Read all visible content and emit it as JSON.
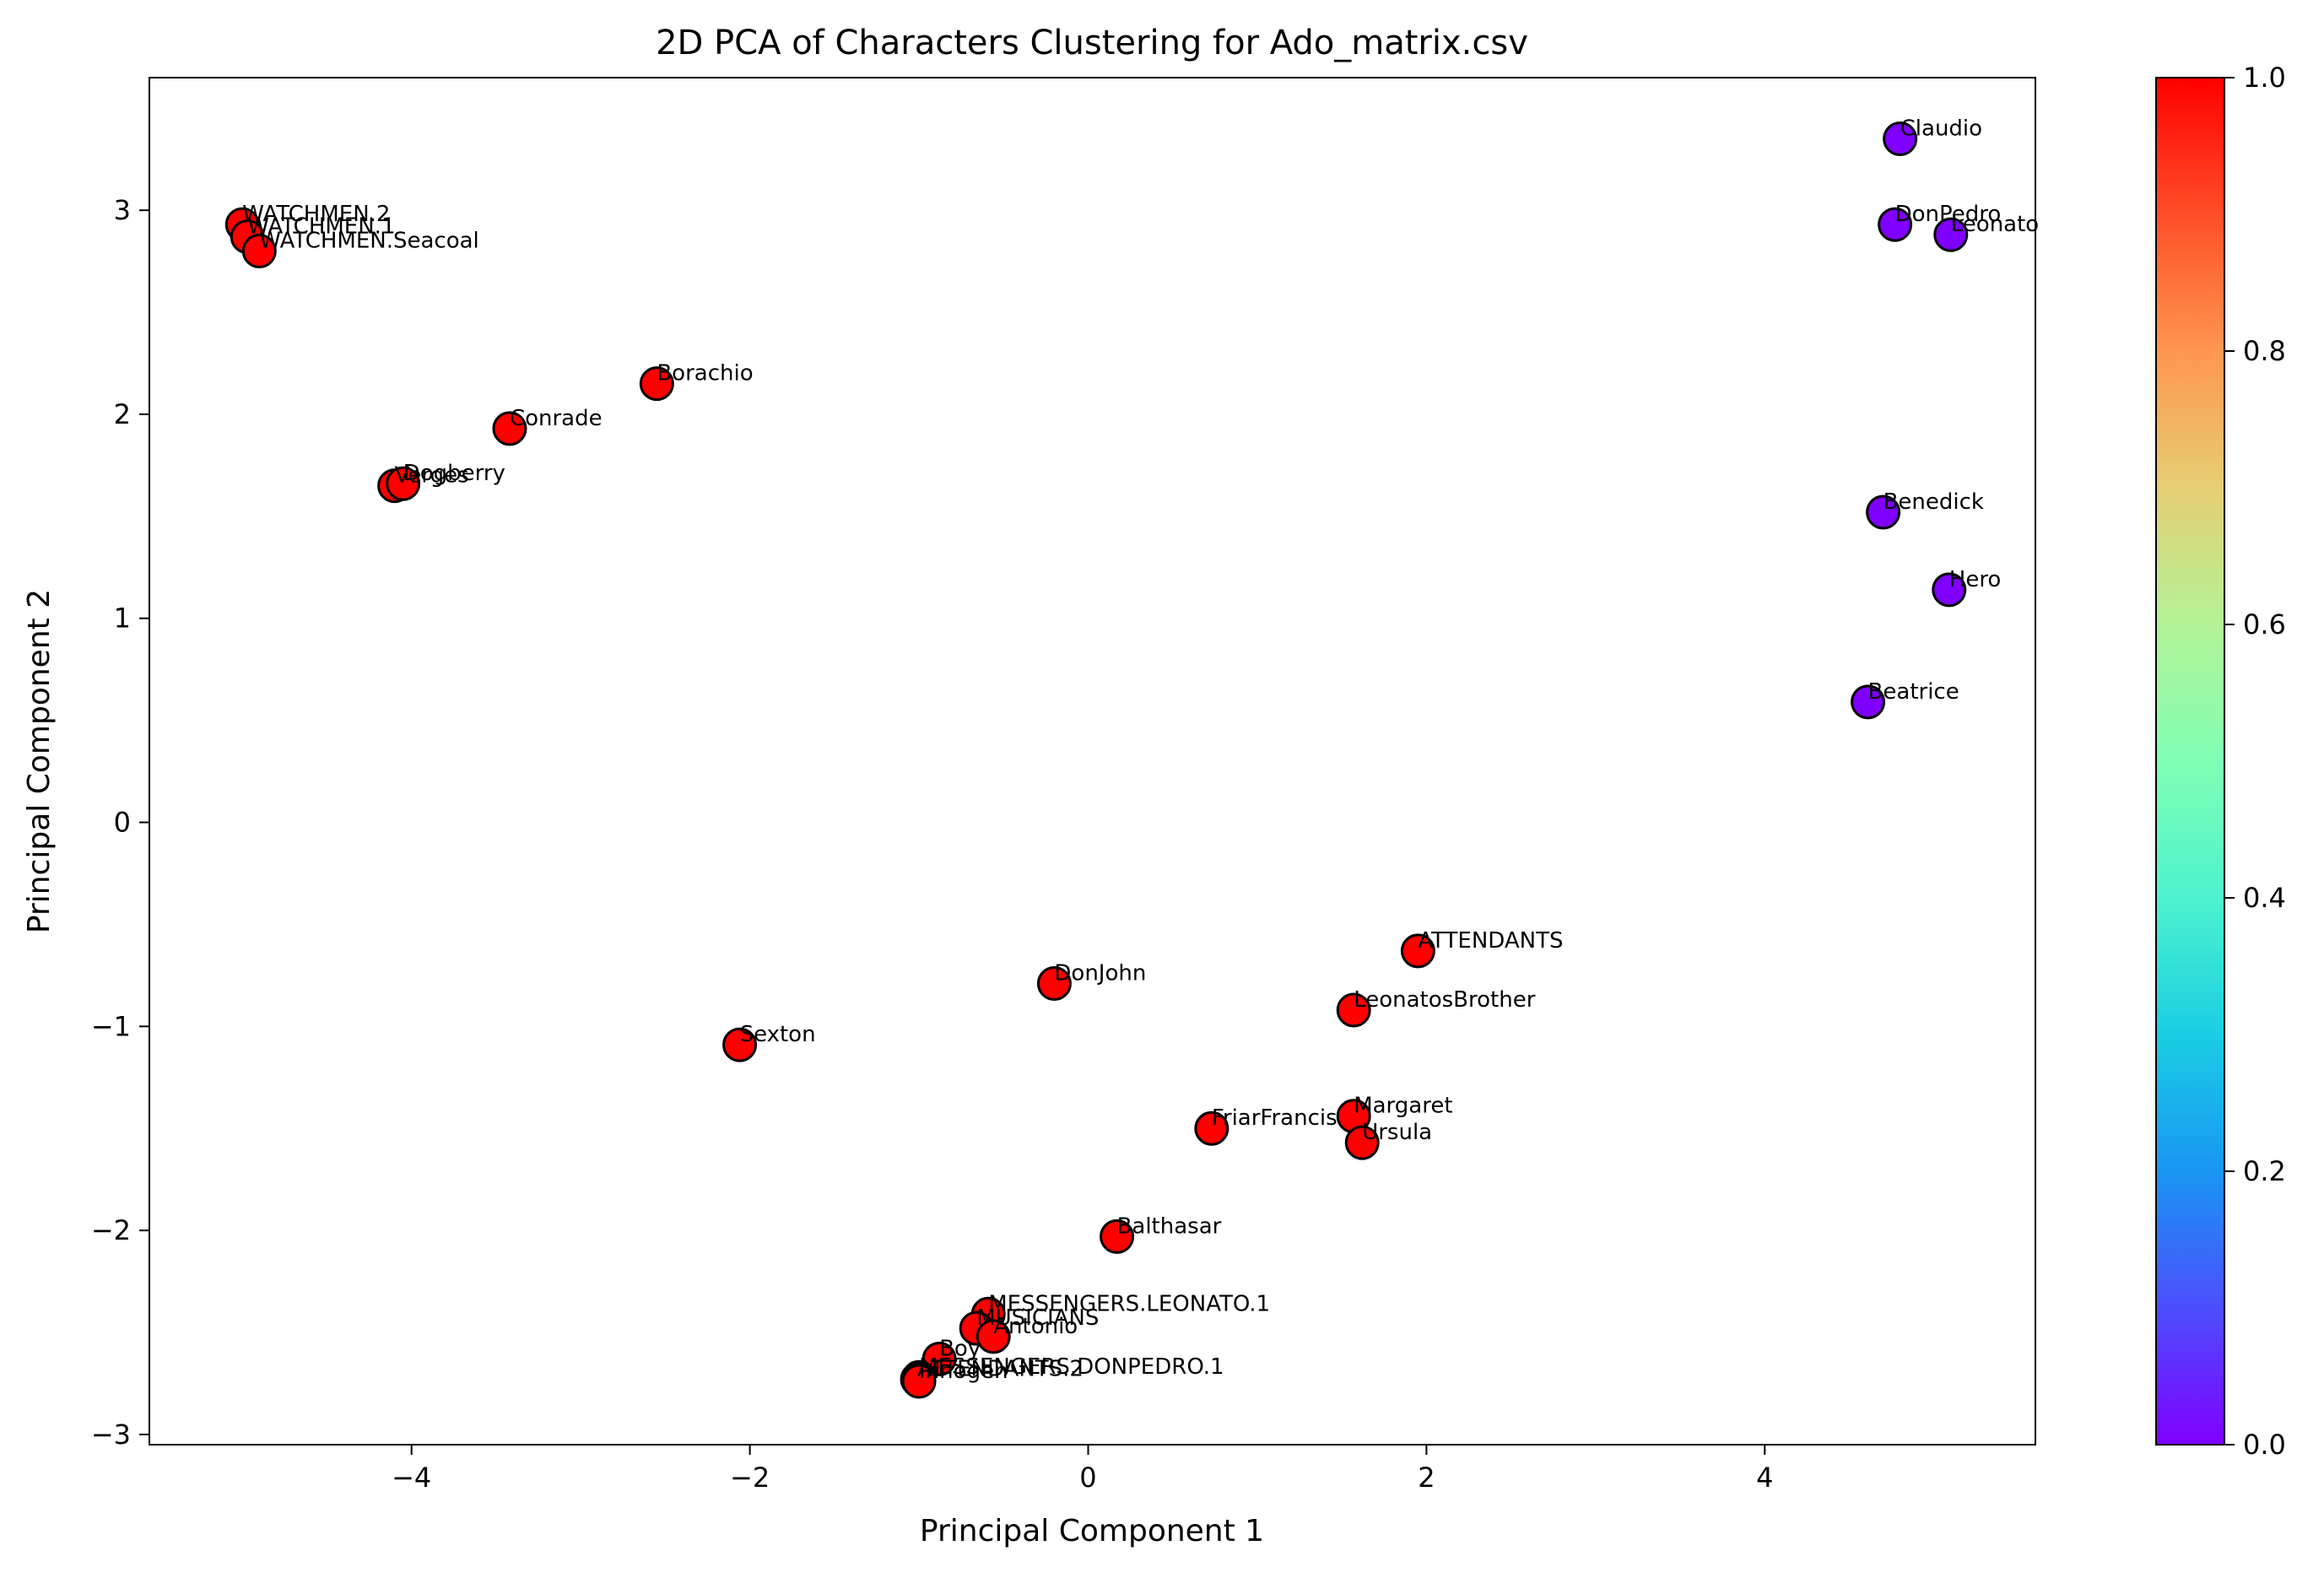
{
  "chart_data": {
    "type": "scatter",
    "title": "2D PCA of Characters Clustering for Ado_matrix.csv",
    "xlabel": "Principal Component 1",
    "ylabel": "Principal Component 2",
    "xlim": [
      -5.55,
      5.6
    ],
    "ylim": [
      -3.05,
      3.65
    ],
    "xticks": [
      -4,
      -2,
      0,
      2,
      4
    ],
    "yticks": [
      -3,
      -2,
      -1,
      0,
      1,
      2,
      3
    ],
    "xtick_labels": [
      "−4",
      "−2",
      "0",
      "2",
      "4"
    ],
    "ytick_labels": [
      "−3",
      "−2",
      "−1",
      "0",
      "1",
      "2",
      "3"
    ],
    "colorbar": {
      "range": [
        0.0,
        1.0
      ],
      "ticks": [
        0.0,
        0.2,
        0.4,
        0.6,
        0.8,
        1.0
      ],
      "tick_labels": [
        "0.0",
        "0.2",
        "0.4",
        "0.6",
        "0.8",
        "1.0"
      ],
      "colormap": "rainbow"
    },
    "grid": false,
    "colors": {
      "cluster0": "#8000ff",
      "cluster1": "#ff0000",
      "edge": "#000000"
    },
    "points": [
      {
        "label": "Claudio",
        "x": 4.8,
        "y": 3.35,
        "cluster": 0
      },
      {
        "label": "DonPedro",
        "x": 4.77,
        "y": 2.93,
        "cluster": 0
      },
      {
        "label": "Leonato",
        "x": 5.1,
        "y": 2.88,
        "cluster": 0
      },
      {
        "label": "Benedick",
        "x": 4.7,
        "y": 1.52,
        "cluster": 0
      },
      {
        "label": "Hero",
        "x": 5.09,
        "y": 1.14,
        "cluster": 0
      },
      {
        "label": "Beatrice",
        "x": 4.61,
        "y": 0.59,
        "cluster": 0
      },
      {
        "label": "WATCHMEN.2",
        "x": -5.0,
        "y": 2.93,
        "cluster": 1
      },
      {
        "label": "WATCHMEN.1",
        "x": -4.97,
        "y": 2.87,
        "cluster": 1
      },
      {
        "label": "WATCHMEN.Seacoal",
        "x": -4.9,
        "y": 2.8,
        "cluster": 1
      },
      {
        "label": "Borachio",
        "x": -2.55,
        "y": 2.15,
        "cluster": 1
      },
      {
        "label": "Conrade",
        "x": -3.42,
        "y": 1.93,
        "cluster": 1
      },
      {
        "label": "Verges",
        "x": -4.1,
        "y": 1.65,
        "cluster": 1
      },
      {
        "label": "Dogberry",
        "x": -4.05,
        "y": 1.66,
        "cluster": 1
      },
      {
        "label": "ATTENDANTS",
        "x": 1.95,
        "y": -0.63,
        "cluster": 1
      },
      {
        "label": "DonJohn",
        "x": -0.2,
        "y": -0.79,
        "cluster": 1
      },
      {
        "label": "LeonatosBrother",
        "x": 1.57,
        "y": -0.92,
        "cluster": 1
      },
      {
        "label": "Sexton",
        "x": -2.06,
        "y": -1.09,
        "cluster": 1
      },
      {
        "label": "Margaret",
        "x": 1.57,
        "y": -1.44,
        "cluster": 1
      },
      {
        "label": "FriarFrancis",
        "x": 0.73,
        "y": -1.5,
        "cluster": 1
      },
      {
        "label": "Ursula",
        "x": 1.62,
        "y": -1.57,
        "cluster": 1
      },
      {
        "label": "Balthasar",
        "x": 0.17,
        "y": -2.03,
        "cluster": 1
      },
      {
        "label": "MESSENGERS.LEONATO.1",
        "x": -0.59,
        "y": -2.41,
        "cluster": 1
      },
      {
        "label": "MUSICIANS",
        "x": -0.66,
        "y": -2.48,
        "cluster": 1
      },
      {
        "label": "Antonio",
        "x": -0.56,
        "y": -2.52,
        "cluster": 1
      },
      {
        "label": "Boy",
        "x": -0.88,
        "y": -2.63,
        "cluster": 1
      },
      {
        "label": "MESSENGERS.DONPEDRO.1",
        "x": -1.0,
        "y": -2.72,
        "cluster": 1
      },
      {
        "label": "ATTENDANTS.2",
        "x": -1.01,
        "y": -2.73,
        "cluster": 1
      },
      {
        "label": "Innogen",
        "x": -1.0,
        "y": -2.74,
        "cluster": 1
      }
    ]
  }
}
